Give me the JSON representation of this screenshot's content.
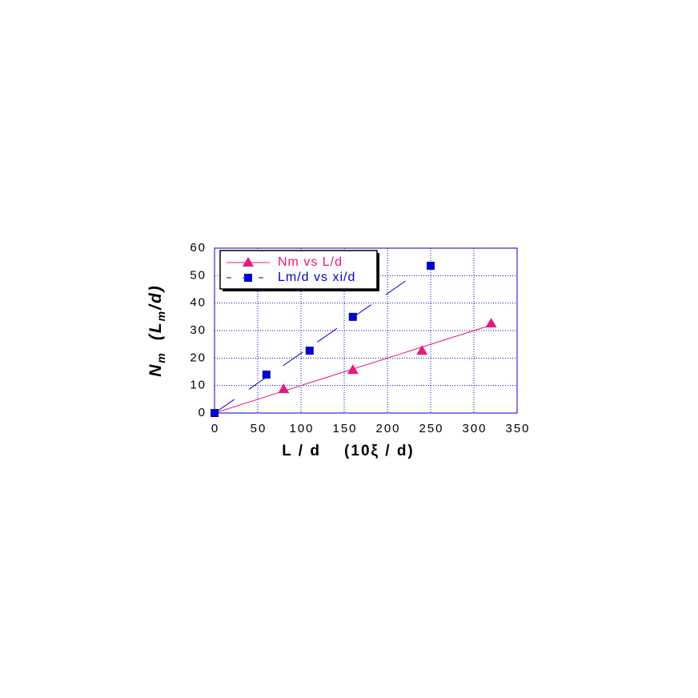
{
  "chart_data": {
    "type": "scatter",
    "xlabel": "L / d    (10ξ / d)",
    "ylabel": [
      "N",
      "m",
      "(L",
      "m",
      "/d)"
    ],
    "xlim": [
      0,
      350
    ],
    "xticks": [
      0,
      50,
      100,
      150,
      200,
      250,
      300,
      350
    ],
    "ylim": [
      0,
      60
    ],
    "yticks": [
      0,
      10,
      20,
      30,
      40,
      50,
      60
    ],
    "grid": true,
    "legend": "upper-left",
    "series": [
      {
        "name": "Nm vs L/d",
        "color": "#e8177f",
        "marker": "triangle",
        "line": "solid",
        "x": [
          80,
          160,
          240,
          320
        ],
        "values": [
          8.7,
          15.7,
          22.7,
          32.6
        ],
        "fit": {
          "x": [
            0,
            320
          ],
          "y": [
            0,
            32
          ]
        }
      },
      {
        "name": "Lm/d vs xi/d",
        "color": "#0000cc",
        "marker": "square",
        "line": "dashed",
        "x": [
          0,
          60,
          110,
          160,
          250
        ],
        "values": [
          0,
          14,
          22.7,
          35,
          53.6
        ],
        "fit": {
          "x": [
            0,
            230
          ],
          "y": [
            0,
            50
          ]
        }
      }
    ]
  }
}
